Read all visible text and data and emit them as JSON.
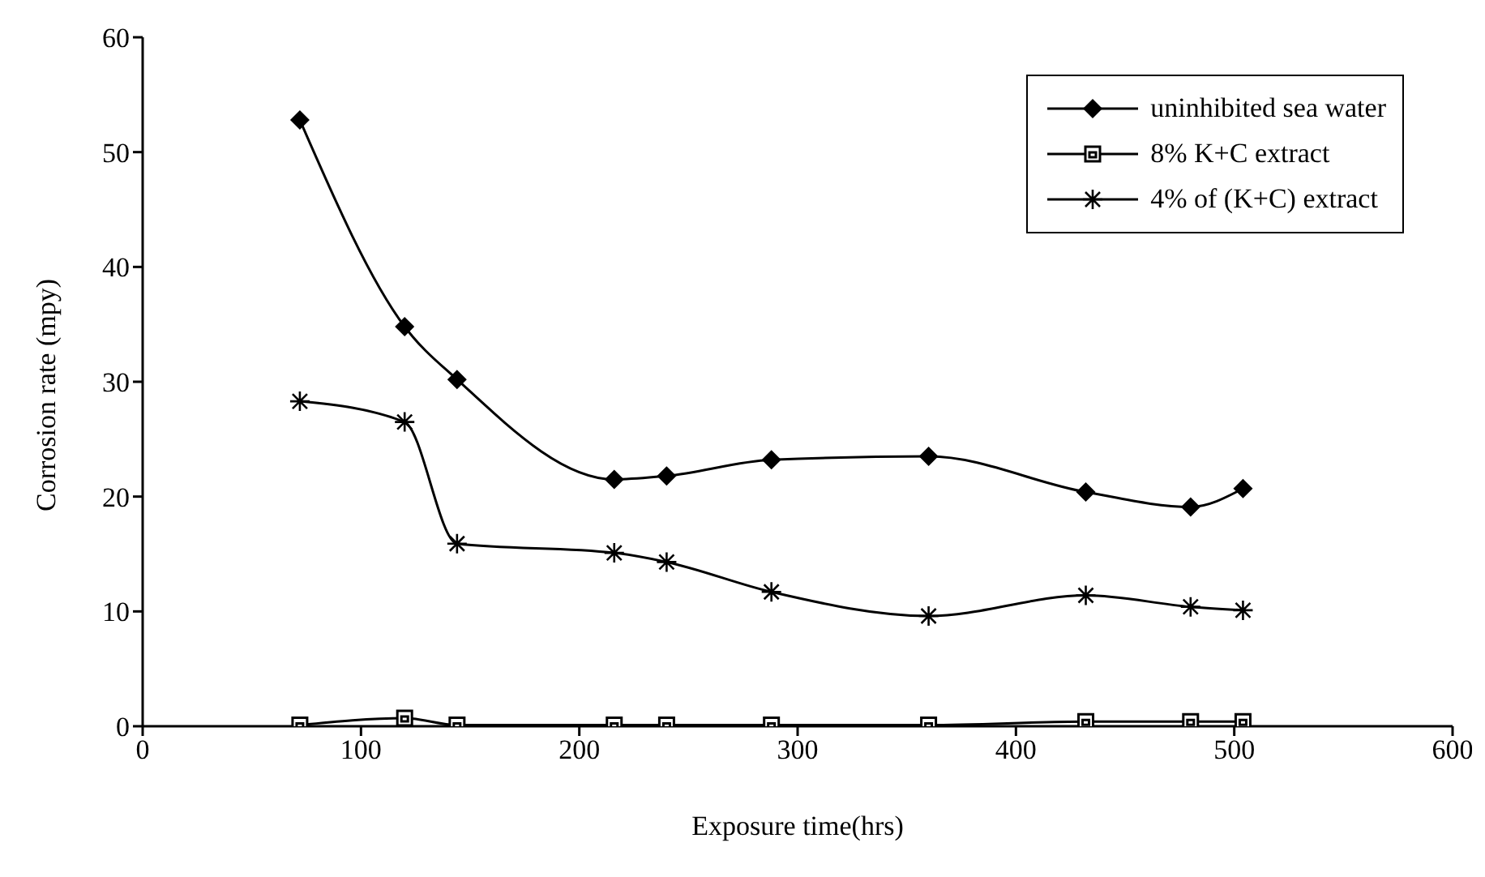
{
  "chart_data": {
    "type": "line",
    "xlabel": "Exposure time(hrs)",
    "ylabel": "Corrosion rate (mpy)",
    "x": [
      72,
      120,
      144,
      216,
      240,
      288,
      360,
      432,
      480,
      504
    ],
    "series": [
      {
        "name": "uninhibited sea water",
        "color": "#000000",
        "marker": "diamond",
        "values": [
          52.8,
          34.8,
          30.2,
          21.5,
          21.8,
          23.2,
          23.5,
          20.4,
          19.1,
          20.7
        ]
      },
      {
        "name": "8% K+C extract",
        "color": "#000000",
        "marker": "square",
        "values": [
          0.1,
          0.7,
          0.1,
          0.1,
          0.1,
          0.1,
          0.1,
          0.4,
          0.4,
          0.4
        ]
      },
      {
        "name": "4% of (K+C) extract",
        "color": "#000000",
        "marker": "cross",
        "values": [
          28.3,
          26.5,
          15.9,
          15.1,
          14.3,
          11.7,
          9.6,
          11.4,
          10.4,
          10.1
        ]
      }
    ],
    "xlim": [
      0,
      600
    ],
    "xticks": [
      0,
      100,
      200,
      300,
      400,
      500,
      600
    ],
    "ylim": [
      0,
      60
    ],
    "yticks": [
      0,
      10,
      20,
      30,
      40,
      50,
      60
    ],
    "grid": false,
    "legend": "top right",
    "line_style": "solid"
  }
}
